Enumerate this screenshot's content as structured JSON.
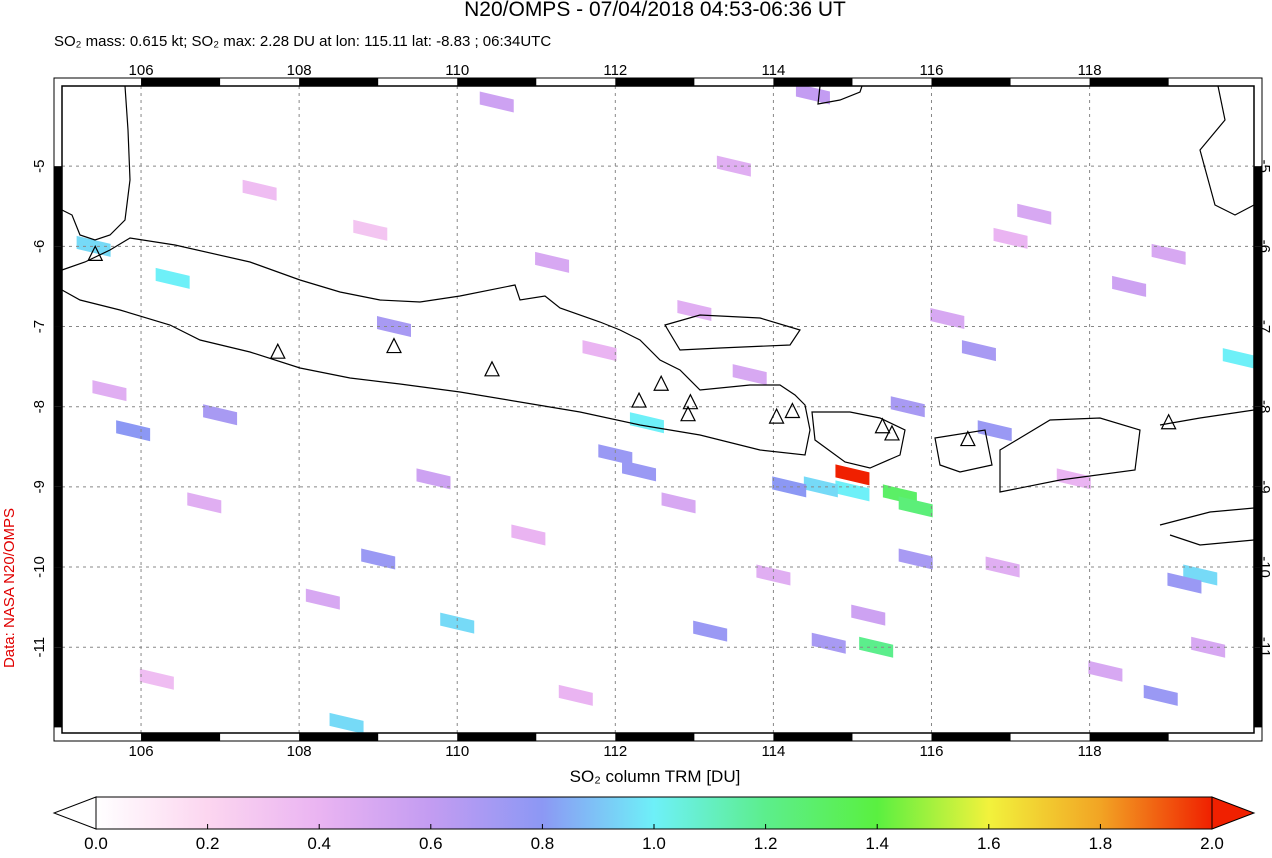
{
  "chart_data": {
    "type": "map",
    "title": "N20/OMPS - 07/04/2018 04:53-06:36 UT",
    "subtitle": "SO₂ mass: 0.615 kt; SO₂ max: 2.28 DU at lon: 115.11 lat: -8.83 ; 06:34UTC",
    "side_label": "Data: NASA N20/OMPS",
    "colorbar_label": "SO₂ column TRM [DU]",
    "xlim": [
      105,
      120.08
    ],
    "ylim": [
      -12.07,
      -4.0
    ],
    "xticks": [
      106,
      108,
      110,
      112,
      114,
      116,
      118
    ],
    "yticks": [
      -5,
      -6,
      -7,
      -8,
      -9,
      -10,
      -11
    ],
    "grid": true,
    "clim": [
      0,
      2
    ],
    "colormap": [
      "#ffffff",
      "#fcd6f0",
      "#eab4f2",
      "#c39cf2",
      "#8c98f4",
      "#6ef0f8",
      "#5cee8c",
      "#5af040",
      "#f2f23c",
      "#f2a424",
      "#f02000"
    ],
    "cticks": [
      {
        "value": 0,
        "label": "0.0"
      },
      {
        "value": 0.2,
        "label": "0.2"
      },
      {
        "value": 0.4,
        "label": "0.4"
      },
      {
        "value": 0.6,
        "label": "0.6"
      },
      {
        "value": 0.8,
        "label": "0.8"
      },
      {
        "value": 1,
        "label": "1.0"
      },
      {
        "value": 1.2,
        "label": "1.2"
      },
      {
        "value": 1.4,
        "label": "1.4"
      },
      {
        "value": 1.6,
        "label": "1.6"
      },
      {
        "value": 1.8,
        "label": "1.8"
      },
      {
        "value": 2,
        "label": "2.0"
      }
    ],
    "cells": {
      "lon": [
        115.0,
        115.6,
        115.8,
        115.3,
        115.0,
        114.6,
        112.4,
        119.4,
        119.9,
        105.4,
        110.0,
        108.6,
        106.4,
        112.0,
        113.2,
        114.7,
        109.2,
        115.7,
        116.8,
        119.2,
        118.9,
        116.6,
        115.8,
        114.2,
        109.0,
        107.0,
        112.3,
        105.9,
        110.5,
        111.2,
        113.5,
        114.5,
        117.3,
        118.5,
        106.8,
        108.3,
        109.7,
        111.8,
        113.0,
        116.2,
        117.8,
        119.0,
        105.6,
        107.5,
        110.9,
        112.8,
        114.0,
        115.2,
        117.0,
        118.2,
        106.2,
        108.9,
        111.5,
        113.7,
        116.9,
        119.5
      ],
      "lat": [
        -8.85,
        -9.1,
        -9.25,
        -11.0,
        -9.05,
        -9.0,
        -8.2,
        -10.1,
        -7.4,
        -6.0,
        -10.7,
        -11.95,
        -6.4,
        -8.6,
        -10.8,
        -10.95,
        -7.0,
        -8.0,
        -8.3,
        -10.2,
        -11.6,
        -7.3,
        -9.9,
        -9.0,
        -9.9,
        -8.1,
        -8.8,
        -8.3,
        -4.2,
        -6.2,
        -5.0,
        -4.1,
        -5.6,
        -6.5,
        -9.2,
        -10.4,
        -8.9,
        -7.3,
        -6.8,
        -6.9,
        -8.9,
        -6.1,
        -7.8,
        -5.3,
        -9.6,
        -9.2,
        -10.1,
        -10.6,
        -5.9,
        -11.3,
        -11.4,
        -5.8,
        -11.6,
        -7.6,
        -10.0,
        -11.0
      ],
      "values": [
        2.0,
        1.3,
        1.25,
        1.2,
        1.0,
        0.95,
        1.0,
        0.95,
        1.0,
        0.95,
        0.95,
        0.95,
        1.0,
        0.75,
        0.75,
        0.7,
        0.7,
        0.7,
        0.75,
        0.75,
        0.75,
        0.7,
        0.7,
        0.8,
        0.75,
        0.7,
        0.75,
        0.8,
        0.55,
        0.5,
        0.45,
        0.6,
        0.5,
        0.55,
        0.45,
        0.5,
        0.55,
        0.4,
        0.45,
        0.5,
        0.4,
        0.5,
        0.45,
        0.35,
        0.4,
        0.5,
        0.45,
        0.55,
        0.4,
        0.5,
        0.35,
        0.3,
        0.4,
        0.5,
        0.45,
        0.5
      ]
    },
    "volcanoes": {
      "lon": [
        105.42,
        107.73,
        109.2,
        110.44,
        112.3,
        112.58,
        112.95,
        112.92,
        114.04,
        114.24,
        115.38,
        115.5,
        116.46,
        119.0
      ],
      "lat": [
        -6.1,
        -7.32,
        -7.25,
        -7.54,
        -7.93,
        -7.72,
        -7.95,
        -8.1,
        -8.13,
        -8.06,
        -8.25,
        -8.34,
        -8.41,
        -8.2
      ]
    }
  }
}
